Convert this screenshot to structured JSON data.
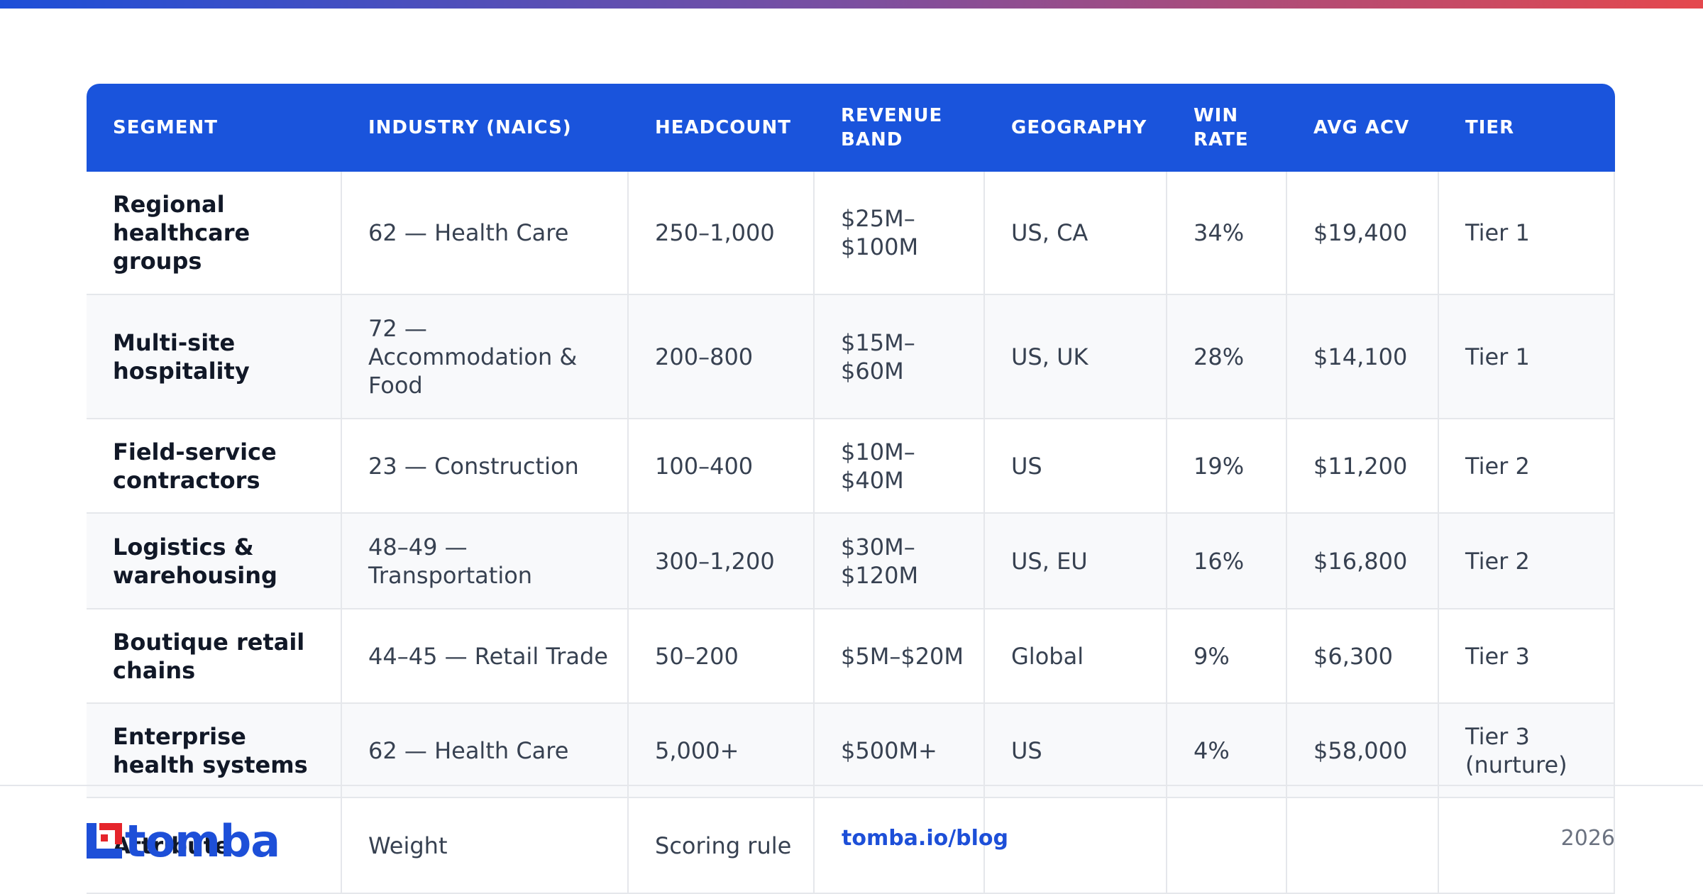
{
  "table": {
    "headers": [
      "SEGMENT",
      "INDUSTRY (NAICS)",
      "HEADCOUNT",
      "REVENUE BAND",
      "GEOGRAPHY",
      "WIN RATE",
      "AVG ACV",
      "TIER"
    ],
    "rows": [
      [
        "Regional healthcare groups",
        "62 — Health Care",
        "250–1,000",
        "$25M–$100M",
        "US, CA",
        "34%",
        "$19,400",
        "Tier 1"
      ],
      [
        "Multi-site hospitality",
        "72 — Accommodation & Food",
        "200–800",
        "$15M–$60M",
        "US, UK",
        "28%",
        "$14,100",
        "Tier 1"
      ],
      [
        "Field-service contractors",
        "23 — Construction",
        "100–400",
        "$10M–$40M",
        "US",
        "19%",
        "$11,200",
        "Tier 2"
      ],
      [
        "Logistics & warehousing",
        "48–49 — Transportation",
        "300–1,200",
        "$30M–$120M",
        "US, EU",
        "16%",
        "$16,800",
        "Tier 2"
      ],
      [
        "Boutique retail chains",
        "44–45 — Retail Trade",
        "50–200",
        "$5M–$20M",
        "Global",
        "9%",
        "$6,300",
        "Tier 3"
      ],
      [
        "Enterprise health systems",
        "62 — Health Care",
        "5,000+",
        "$500M+",
        "US",
        "4%",
        "$58,000",
        "Tier 3 (nurture)"
      ],
      [
        "Attribute",
        "Weight",
        "Scoring rule"
      ]
    ]
  },
  "footer": {
    "logo": "tomba",
    "link": "tomba.io/blog",
    "year": "2026"
  }
}
